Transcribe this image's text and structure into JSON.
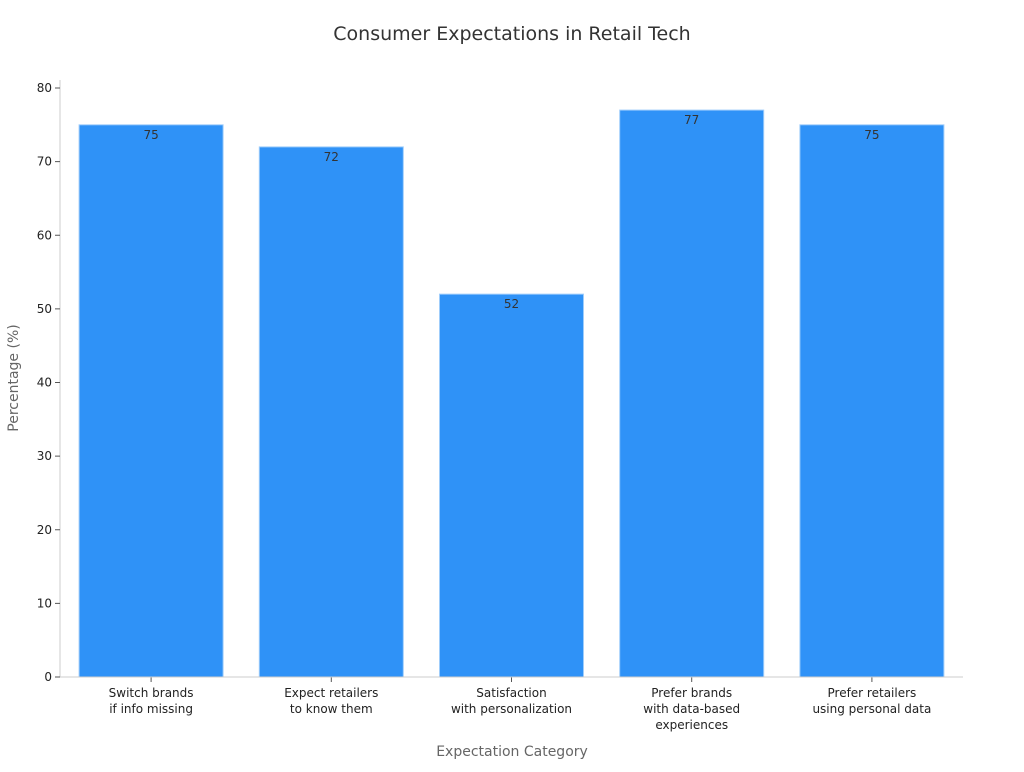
{
  "chart_data": {
    "type": "bar",
    "title": "Consumer Expectations in Retail Tech",
    "xlabel": "Expectation Category",
    "ylabel": "Percentage (%)",
    "categories": [
      [
        "Switch brands",
        "if info missing"
      ],
      [
        "Expect retailers",
        "to know them"
      ],
      [
        "Satisfaction",
        "with personalization"
      ],
      [
        "Prefer brands",
        "with data-based",
        "experiences"
      ],
      [
        "Prefer retailers",
        "using personal data"
      ]
    ],
    "values": [
      75,
      72,
      52,
      77,
      75
    ],
    "ylim": [
      0,
      80
    ],
    "yticks": [
      0,
      10,
      20,
      30,
      40,
      50,
      60,
      70,
      80
    ],
    "grid": false,
    "bar_color": "#2f92f7"
  }
}
